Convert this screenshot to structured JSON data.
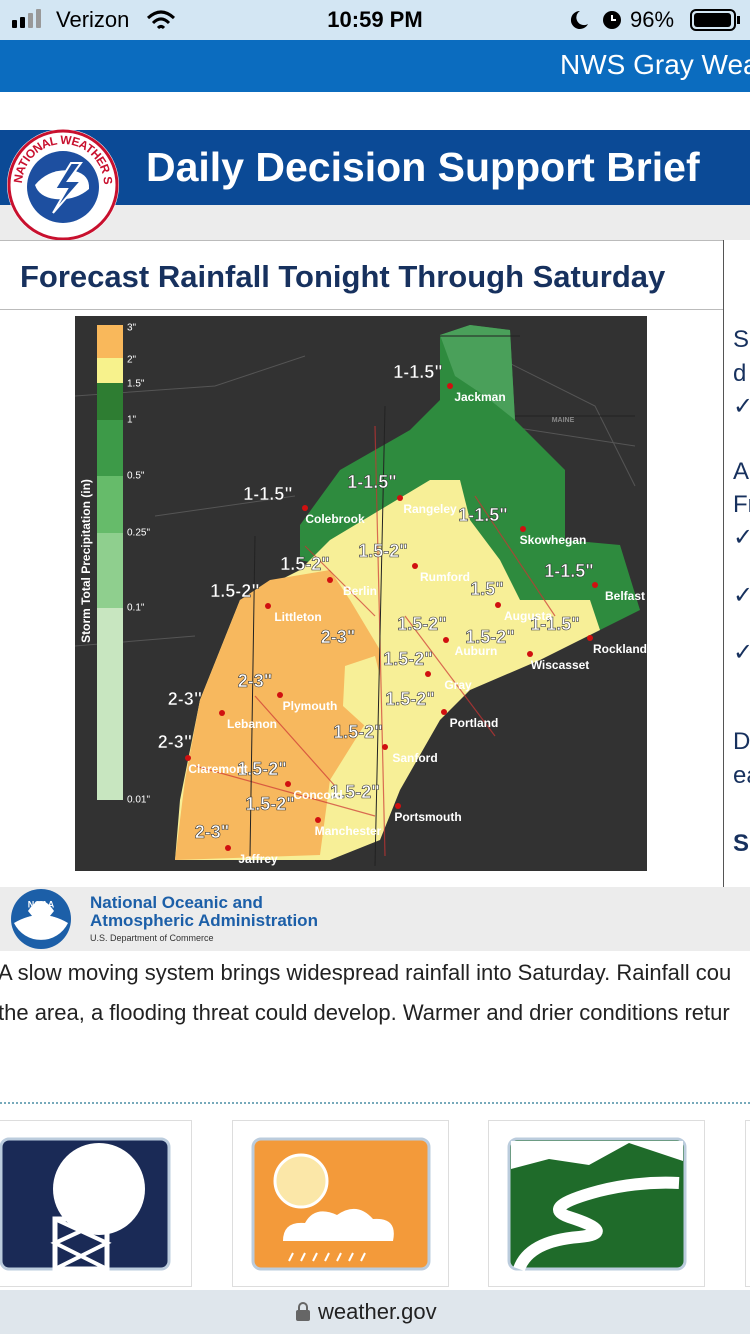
{
  "status_bar": {
    "carrier": "Verizon",
    "time": "10:59 PM",
    "battery": "96%"
  },
  "header": {
    "site_title": "NWS Gray Wea"
  },
  "banner": {
    "logo_text": "NATIONAL WEATHER SERVICE",
    "title": "Daily Decision Support Brief"
  },
  "slide": {
    "title": "Forecast Rainfall Tonight Through Saturday",
    "legend": {
      "label": "Storm Total Precipitation (in)",
      "ticks": [
        "3\"",
        "2\"",
        "1.5\"",
        "1\"",
        "0.5\"",
        "0.25\"",
        "0.1\"",
        "0.01\""
      ]
    },
    "amounts": [
      "1-1.5\"",
      "1-1.5\"",
      "1-1.5\"",
      "1-1.5\"",
      "1-1.5\"",
      "1.5-2\"",
      "1.5-2\"",
      "1.5-2\"",
      "1.5\"",
      "1-1.5\"",
      "1.5-2\"",
      "1.5-2\"",
      "2-3\"",
      "1.5-2\"",
      "2-3\"",
      "1.5-2\"",
      "2-3\"",
      "1.5-2\"",
      "2-3\"",
      "1.5-2\"",
      "1.5-2\"",
      "1.5-2\"",
      "2-3\""
    ],
    "places": [
      "Jackman",
      "Colebrook",
      "Rangeley",
      "Skowhegan",
      "Rumford",
      "Berlin",
      "Belfast",
      "Littleton",
      "Augusta",
      "Auburn",
      "Rockland",
      "Wiscasset",
      "Gray",
      "Plymouth",
      "Lebanon",
      "Portland",
      "Claremont",
      "Sanford",
      "Concord",
      "Manchester",
      "Portsmouth",
      "Jaffrey",
      "MAINE"
    ],
    "side_text": [
      "S",
      "d",
      "✓",
      "A",
      "Fr",
      "✓",
      "✓",
      "✓",
      "D",
      "ea",
      "S"
    ]
  },
  "noaa": {
    "name_line1": "National Oceanic and",
    "name_line2": "Atmospheric Administration",
    "department": "U.S. Department of Commerce",
    "logo_text": "NOAA"
  },
  "summary": {
    "lines": [
      "A slow moving system brings widespread rainfall into Saturday. Rainfall cou",
      "the area, a flooding threat could develop. Warmer and drier conditions retur"
    ]
  },
  "url_bar": {
    "url": "weather.gov"
  }
}
